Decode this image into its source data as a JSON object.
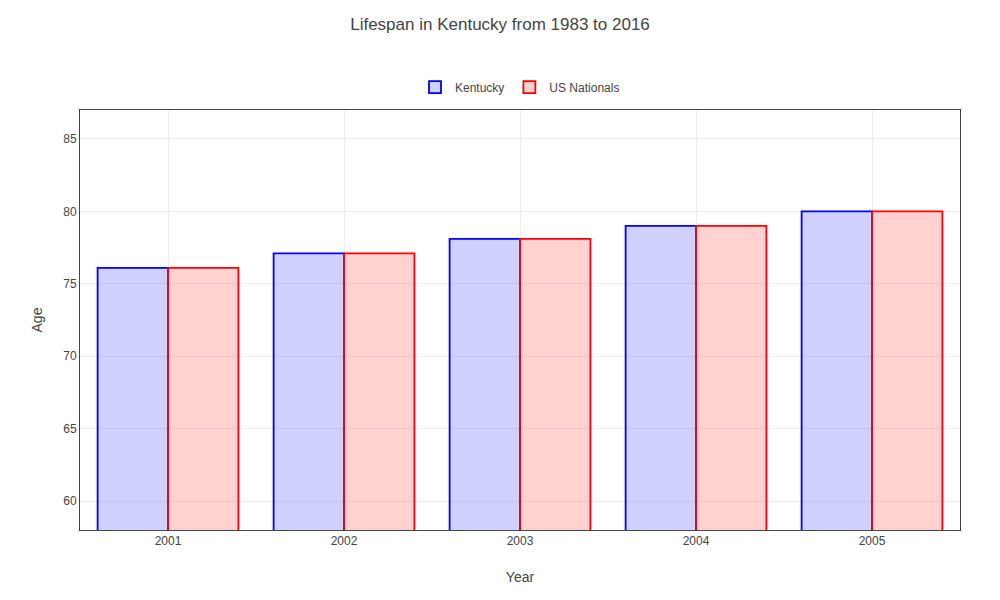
{
  "chart_data": {
    "type": "bar",
    "title": "Lifespan in Kentucky from 1983 to 2016",
    "xlabel": "Year",
    "ylabel": "Age",
    "categories": [
      "2001",
      "2002",
      "2003",
      "2004",
      "2005"
    ],
    "series": [
      {
        "name": "Kentucky",
        "color": "#0000ff",
        "values": [
          76.1,
          77.1,
          78.1,
          79.0,
          80.0
        ]
      },
      {
        "name": "US Nationals",
        "color": "#ff0000",
        "values": [
          76.1,
          77.1,
          78.1,
          79.0,
          80.0
        ]
      }
    ],
    "ylim": [
      58,
      87
    ],
    "yticks": [
      60,
      65,
      70,
      75,
      80,
      85
    ],
    "grid": true,
    "legend": "top"
  }
}
